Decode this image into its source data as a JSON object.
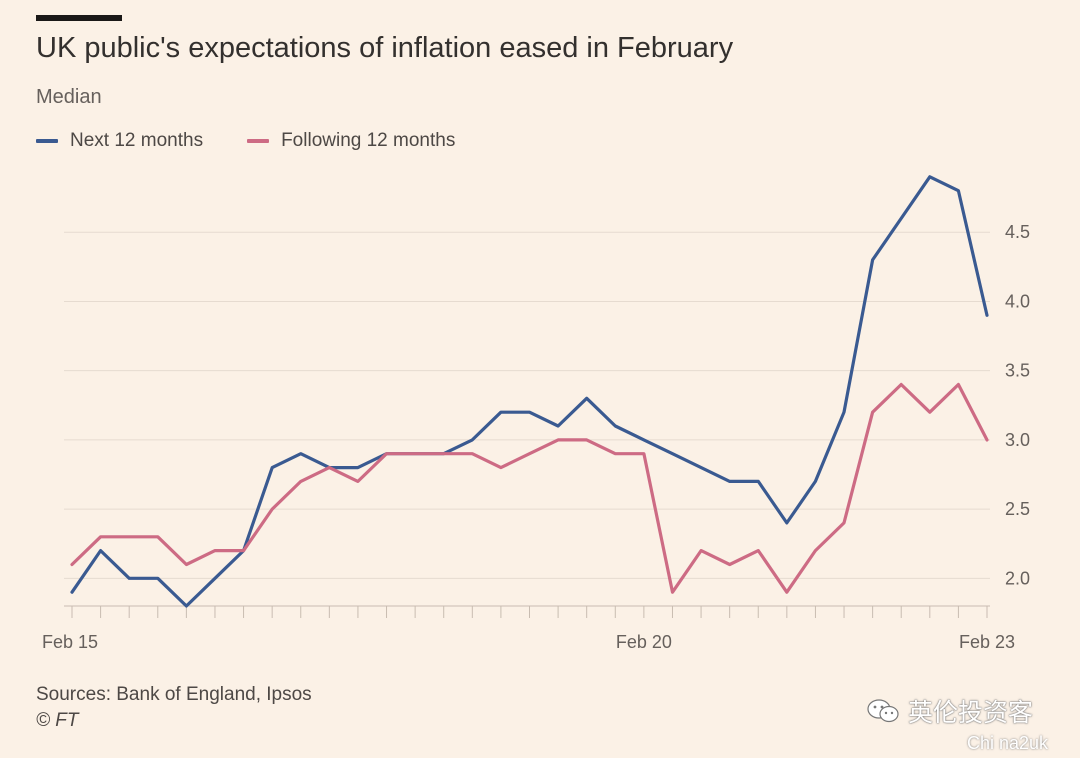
{
  "header": {
    "title": "UK public's expectations of inflation eased in February",
    "subtitle": "Median"
  },
  "footer": {
    "sources": "Sources: Bank of England, Ipsos",
    "copyright": "© FT"
  },
  "watermark": {
    "text": "英伦投资客",
    "sub": "Chi na2uk"
  },
  "colors": {
    "background": "#fbf1e6",
    "next": "#3a5a91",
    "following": "#cd6b84",
    "grid": "#e6dbd0",
    "axis": "#c8bcb1"
  },
  "chart_data": {
    "type": "line",
    "title": "UK public's expectations of inflation eased in February",
    "subtitle": "Median",
    "x_tick_labels": [
      "Feb 15",
      "Feb 20",
      "Feb 23"
    ],
    "x_tick_positions": [
      0,
      20,
      32
    ],
    "yticks": [
      2.0,
      2.5,
      3.0,
      3.5,
      4.0,
      4.5
    ],
    "ylim": [
      1.8,
      5.0
    ],
    "grid": true,
    "legend_position": "top-left",
    "series": [
      {
        "name": "Next 12 months",
        "color": "#3a5a91",
        "values": [
          1.9,
          2.2,
          2.0,
          2.0,
          1.8,
          2.0,
          2.2,
          2.8,
          2.9,
          2.8,
          2.8,
          2.9,
          2.9,
          2.9,
          3.0,
          3.2,
          3.2,
          3.1,
          3.3,
          3.1,
          3.0,
          2.9,
          2.8,
          2.7,
          2.7,
          2.4,
          2.7,
          3.2,
          4.3,
          4.6,
          4.9,
          4.8,
          3.9
        ]
      },
      {
        "name": "Following 12 months",
        "color": "#cd6b84",
        "values": [
          2.1,
          2.3,
          2.3,
          2.3,
          2.1,
          2.2,
          2.2,
          2.5,
          2.7,
          2.8,
          2.7,
          2.9,
          2.9,
          2.9,
          2.9,
          2.8,
          2.9,
          3.0,
          3.0,
          2.9,
          2.9,
          1.9,
          2.2,
          2.1,
          2.2,
          1.9,
          2.2,
          2.4,
          3.2,
          3.4,
          3.2,
          3.4,
          3.0
        ]
      }
    ]
  }
}
